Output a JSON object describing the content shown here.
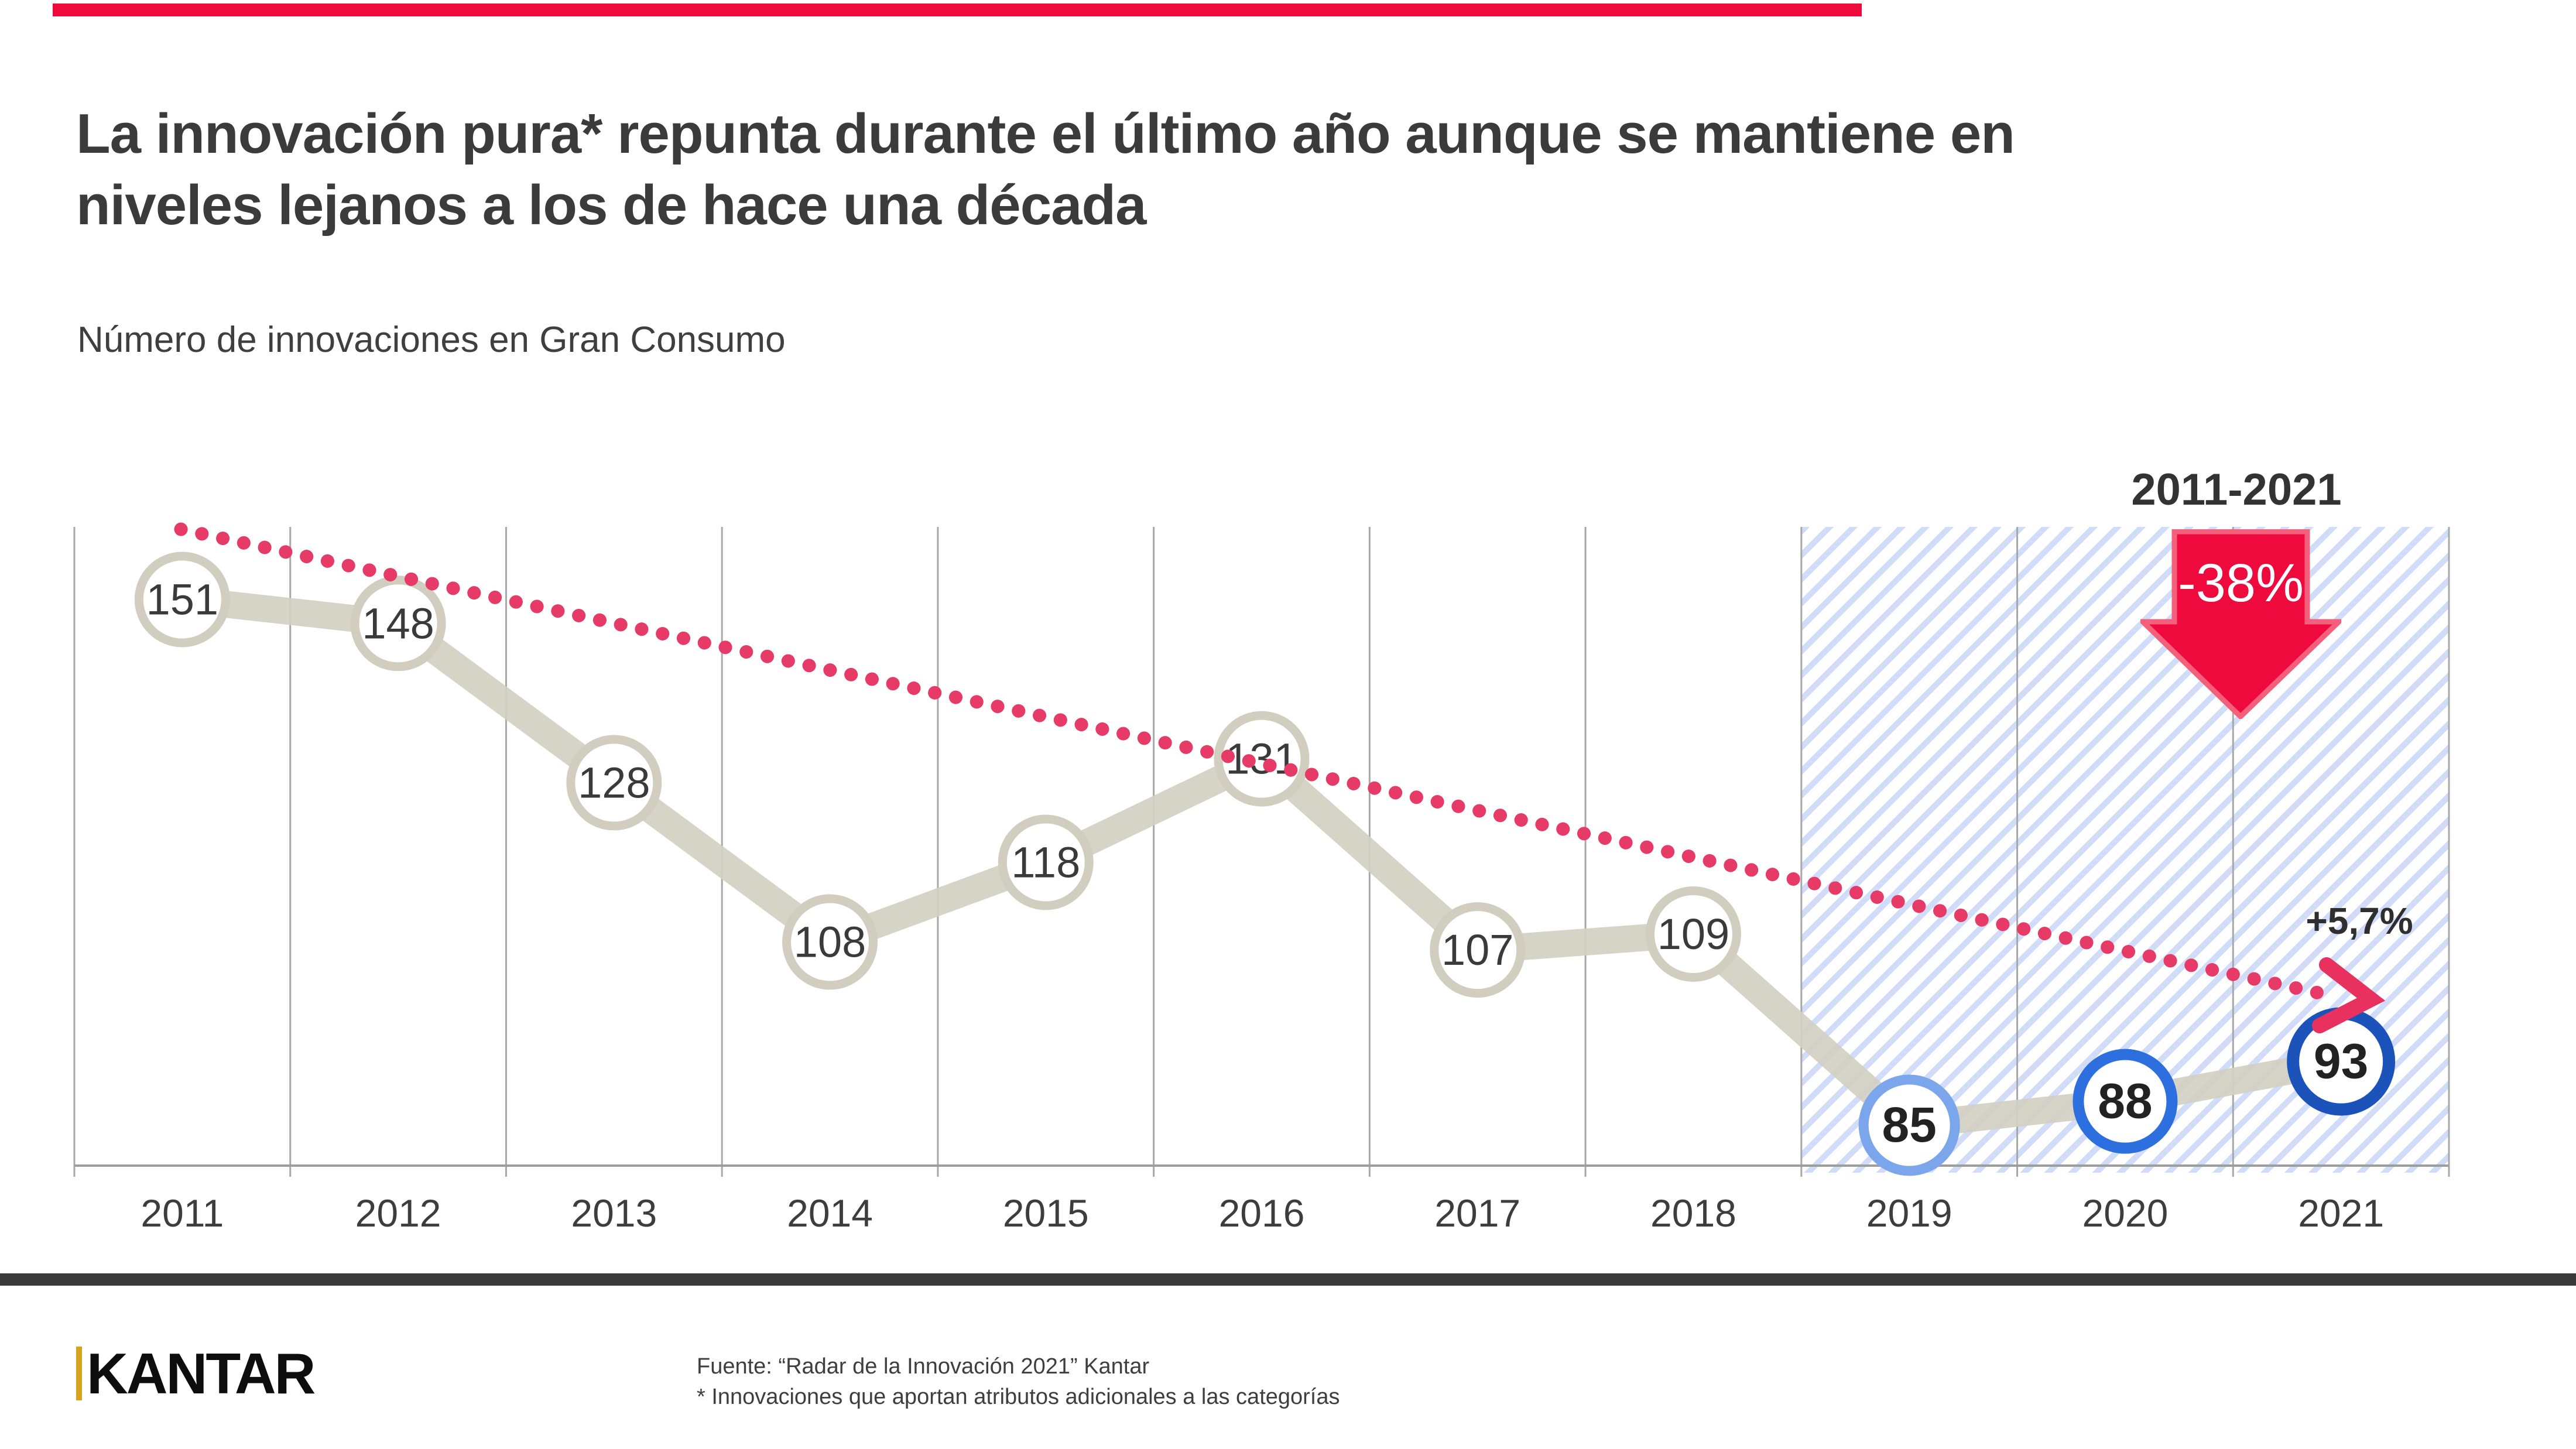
{
  "accent_color": "#ee0a3c",
  "title": {
    "line1": "La innovación pura* repunta durante el último año aunque se mantiene en",
    "line2": "niveles lejanos a los de hace una década"
  },
  "subtitle": "Número de innovaciones en Gran Consumo",
  "annotations": {
    "period": "2011-2021",
    "decade_change": "-38%",
    "last_year_change": "+5,7%"
  },
  "chart_data": {
    "type": "line",
    "title": "Número de innovaciones en Gran Consumo",
    "categories": [
      "2011",
      "2012",
      "2013",
      "2014",
      "2015",
      "2016",
      "2017",
      "2018",
      "2019",
      "2020",
      "2021"
    ],
    "series": [
      {
        "name": "Número de innovaciones",
        "values": [
          151,
          148,
          128,
          108,
          118,
          131,
          107,
          109,
          85,
          88,
          93
        ]
      }
    ],
    "ylim": [
      80,
      160
    ],
    "xlabel": "",
    "ylabel": "",
    "grid": "vertical",
    "legend": "none",
    "band_color": "#d3d0c3",
    "grid_color": "#a8a8a8",
    "axis_color": "#9d9d9d",
    "tick_label_color": "#3d3d3d",
    "point_border_colors": [
      "#d1cec0",
      "#d1cec0",
      "#d1cec0",
      "#d1cec0",
      "#d1cec0",
      "#d1cec0",
      "#d1cec0",
      "#d1cec0",
      "#7ba6ec",
      "#2e6fe0",
      "#1c53bb"
    ],
    "value_label_color_normal": "#3a3a3a",
    "value_label_color_highlight": "#222222",
    "highlight_region": {
      "from": "2019",
      "to": "2021",
      "style": "blue-diagonal-hatch",
      "stripe_color": "#7fa1eb"
    },
    "trend_line": {
      "style": "dotted",
      "color": "#e63a67",
      "arrow_color": "#e8315f",
      "direction": "down"
    }
  },
  "footer": {
    "source": "Fuente: “Radar de la Innovación 2021” Kantar",
    "note": "*  Innovaciones que aportan atributos adicionales a las categorías"
  },
  "brand": {
    "logo_text": "KANTAR"
  }
}
